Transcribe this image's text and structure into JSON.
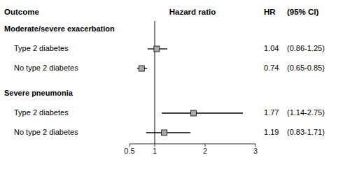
{
  "chart_data": {
    "type": "forest",
    "xlabel": "Hazard ratio",
    "columns": [
      "Outcome",
      "HR",
      "(95% CI)"
    ],
    "groups": [
      {
        "name": "Moderate/severe exacerbation",
        "categories": [
          "Type 2 diabetes",
          "No type 2 diabetes"
        ],
        "values": [
          1.04,
          0.74
        ],
        "ci_low": [
          0.86,
          0.65
        ],
        "ci_high": [
          1.25,
          0.85
        ],
        "ci_labels": [
          "(0.86-1.25)",
          "(0.65-0.85)"
        ]
      },
      {
        "name": "Severe pneumonia",
        "categories": [
          "Type 2 diabetes",
          "No type 2 diabetes"
        ],
        "values": [
          1.77,
          1.19
        ],
        "ci_low": [
          1.14,
          0.83
        ],
        "ci_high": [
          2.75,
          1.71
        ],
        "ci_labels": [
          "(1.14-2.75)",
          "(0.83-1.71)"
        ]
      }
    ],
    "reference": 1.0,
    "xlim": [
      0.5,
      3.0
    ],
    "xticks": [
      0.5,
      1,
      2,
      3
    ],
    "color": "#aaaaaa",
    "data_labels": true
  }
}
